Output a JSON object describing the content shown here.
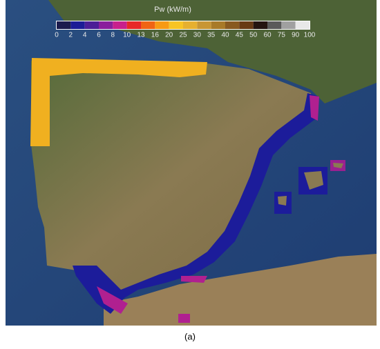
{
  "legend": {
    "title": "Pw (kW/m)",
    "ticks": [
      0,
      2,
      4,
      6,
      8,
      10,
      13,
      16,
      20,
      25,
      30,
      35,
      40,
      45,
      50,
      60,
      75,
      90,
      100
    ],
    "colors": [
      "#1b1b4d",
      "#1c1c96",
      "#4b1e96",
      "#8a1e9c",
      "#c8208c",
      "#e82828",
      "#f06414",
      "#f89a14",
      "#f8c424",
      "#e6b030",
      "#c89634",
      "#a87a28",
      "#885a20",
      "#683a14",
      "#241410",
      "#5a5a5a",
      "#a0a0a0",
      "#e8e8e8"
    ]
  },
  "caption": "(a)"
}
